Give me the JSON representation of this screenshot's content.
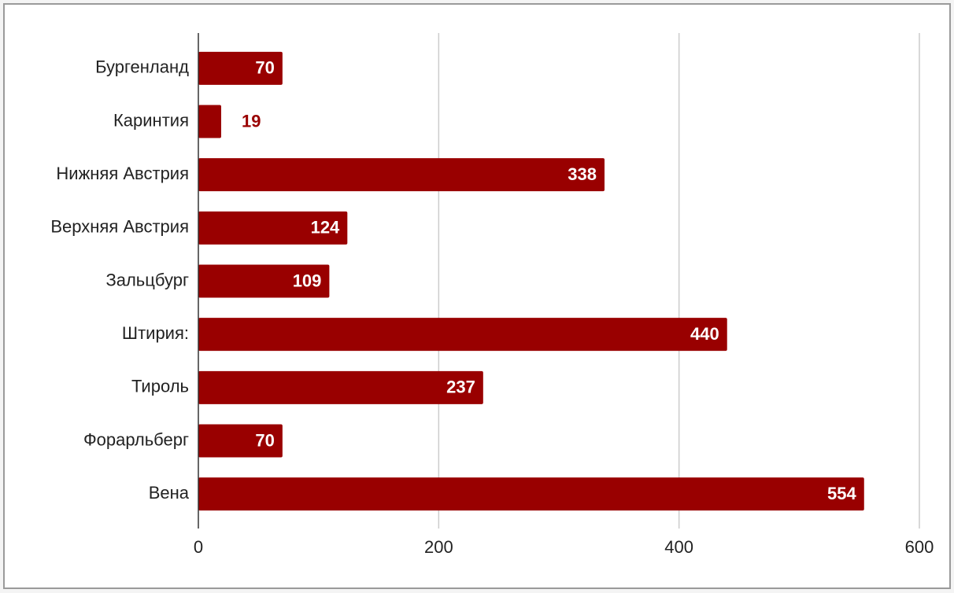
{
  "chart_data": {
    "type": "barh",
    "categories": [
      "Бургенланд",
      "Каринтия",
      "Нижняя Австрия",
      "Верхняя Австрия",
      "Зальцбург",
      "Штирия:",
      "Тироль",
      "Форарльберг",
      "Вена"
    ],
    "values": [
      70,
      19,
      338,
      124,
      109,
      440,
      237,
      70,
      554
    ],
    "color": "#990000",
    "xlim": [
      0,
      600
    ],
    "xticks": [
      0,
      200,
      400,
      600
    ],
    "grid": true
  }
}
